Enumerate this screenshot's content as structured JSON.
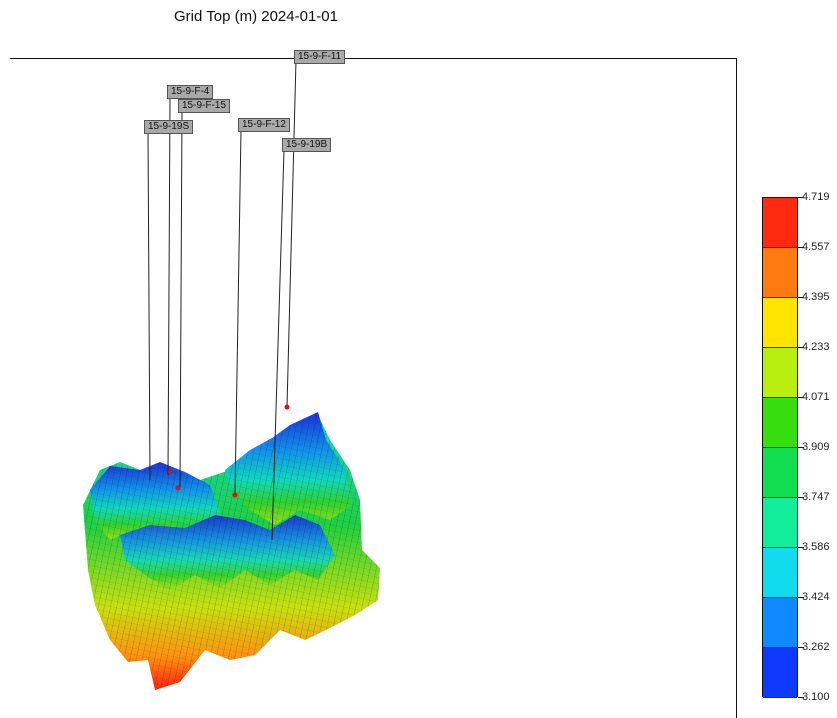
{
  "title": "Grid Top (m) 2024-01-01",
  "wells": [
    {
      "name": "15-9-F-11"
    },
    {
      "name": "15-9-F-4"
    },
    {
      "name": "15-9-F-15"
    },
    {
      "name": "15-9-19S"
    },
    {
      "name": "15-9-F-12"
    },
    {
      "name": "15-9-19B"
    }
  ],
  "colorbar": {
    "labels": [
      "4.719",
      "4.557",
      "4.395",
      "4.233",
      "4.071",
      "3.909",
      "3.747",
      "3.586",
      "3.424",
      "3.262",
      "3.100"
    ],
    "colors": [
      "#ff2a10",
      "#ff7a10",
      "#ffe400",
      "#b8ee10",
      "#38dd10",
      "#10dd50",
      "#10ee9a",
      "#10dcee",
      "#1088ff",
      "#1038ff"
    ]
  },
  "surface_colors": {
    "low": "#1030ee",
    "mid_low": "#10d8ee",
    "mid": "#20d040",
    "mid_high": "#ffe000",
    "high": "#ff2010"
  }
}
